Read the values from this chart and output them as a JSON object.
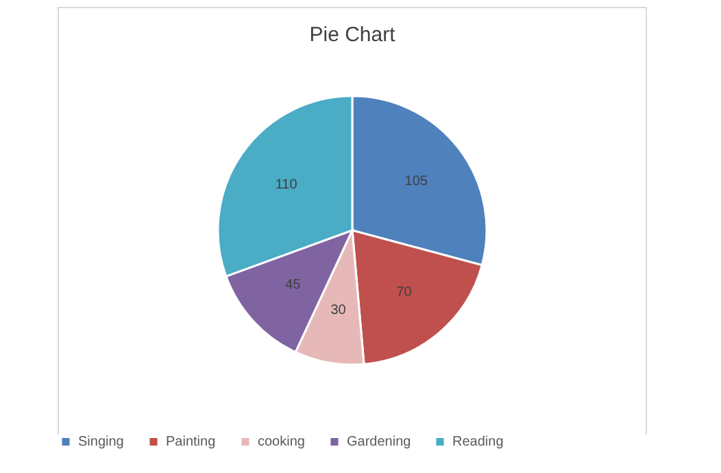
{
  "chart_data": {
    "type": "pie",
    "title": "Pie Chart",
    "categories": [
      "Singing",
      "Painting",
      "cooking",
      "Gardening",
      "Reading"
    ],
    "values": [
      105,
      70,
      30,
      45,
      110
    ],
    "colors": [
      "#4f81bd",
      "#c0504d",
      "#e6b9b8",
      "#8064a2",
      "#4bacc6"
    ],
    "data_labels": true,
    "legend": "bottom"
  }
}
